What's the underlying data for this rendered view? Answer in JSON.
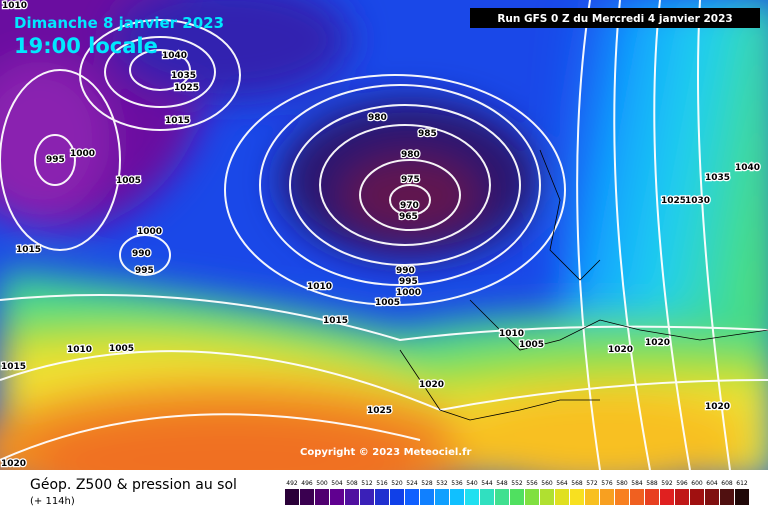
{
  "header": {
    "date": "Dimanche 8 janvier 2023",
    "time": "19:00 locale",
    "run": "Run GFS 0 Z du Mercredi 4 janvier 2023"
  },
  "copyright": "Copyright © 2023 Meteociel.fr",
  "footer": {
    "title": "Géop. Z500 & pression au sol",
    "lead": "(+ 114h)"
  },
  "isobars": [
    1010,
    1040,
    1035,
    1025,
    1015,
    995,
    1000,
    1005,
    980,
    985,
    980,
    975,
    970,
    965,
    1000,
    990,
    995,
    1015,
    990,
    995,
    1000,
    1005,
    1010,
    1015,
    1010,
    1005,
    1015,
    1010,
    1005,
    1020,
    1020,
    1020,
    1025,
    1020,
    1020,
    1025,
    1030,
    1035,
    1040
  ],
  "scale": {
    "values": [
      492,
      496,
      500,
      504,
      508,
      512,
      516,
      520,
      524,
      528,
      532,
      536,
      540,
      544,
      548,
      552,
      556,
      560,
      564,
      568,
      572,
      576,
      580,
      584,
      588,
      592,
      596,
      600,
      604,
      608,
      612
    ],
    "colors": [
      "#2a0038",
      "#3a0050",
      "#500070",
      "#600090",
      "#5010a0",
      "#3a20b8",
      "#2030d0",
      "#1040e8",
      "#1060ff",
      "#1080ff",
      "#10a0ff",
      "#10c0ff",
      "#20e0f0",
      "#30e0c0",
      "#40e090",
      "#50e060",
      "#80e040",
      "#b0e030",
      "#e0e020",
      "#f8e020",
      "#f8c020",
      "#f8a020",
      "#f88020",
      "#f06020",
      "#e84020",
      "#e02020",
      "#c01818",
      "#a01010",
      "#801010",
      "#501010",
      "#200808"
    ]
  }
}
